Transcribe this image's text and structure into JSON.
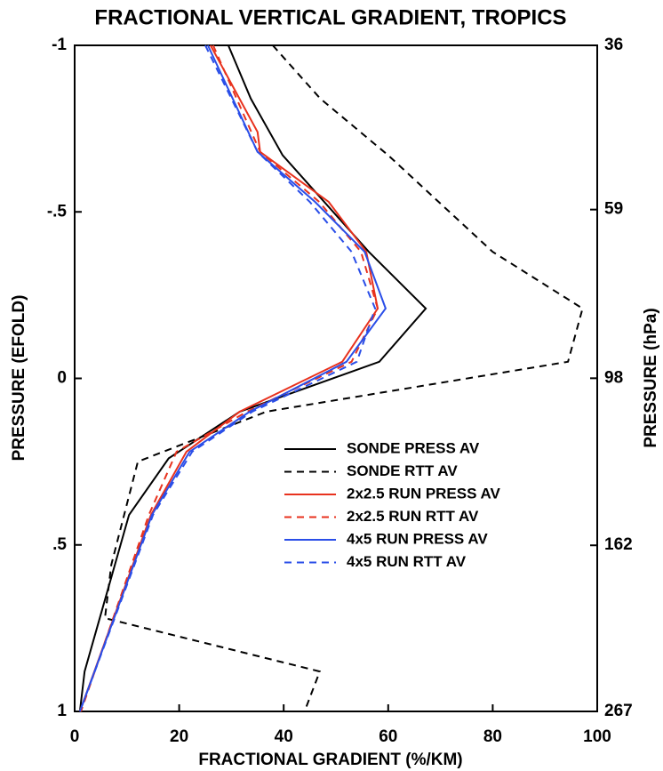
{
  "chart_data": {
    "type": "line",
    "title": "FRACTIONAL VERTICAL GRADIENT, TROPICS",
    "x_label": "FRACTIONAL GRADIENT (%/KM)",
    "y_label": "PRESSURE (EFOLD)",
    "y2_label": "PRESSURE (hPa)",
    "xlim": [
      0,
      100
    ],
    "xticks": [
      0,
      20,
      40,
      60,
      80,
      100
    ],
    "ylim": [
      1,
      -1
    ],
    "yticks": [
      -1,
      {
        "value": -0.5,
        "label": "-.5"
      },
      0,
      {
        "value": 0.5,
        "label": ".5"
      },
      1
    ],
    "y2lim": [
      267,
      36
    ],
    "y2_log": true,
    "y2ticks": [
      36,
      59,
      98,
      162,
      267
    ],
    "series": [
      {
        "name": "SONDE PRESS AV",
        "color": "#000000",
        "dashed": false,
        "x": [
          29.4,
          33.7,
          39.8,
          56.3,
          67.2,
          58.3,
          31.6,
          18.0,
          10.4,
          1.9,
          1.0
        ],
        "values": [
          -1,
          -0.84,
          -0.67,
          -0.38,
          -0.21,
          -0.05,
          0.1,
          0.24,
          0.41,
          0.88,
          1
        ]
      },
      {
        "name": "SONDE RTT AV",
        "color": "#000000",
        "dashed": true,
        "x": [
          37.9,
          47,
          60,
          80,
          97.2,
          94.4,
          36.7,
          12.1,
          7.0,
          5.8,
          46.9,
          44
        ],
        "values": [
          -1,
          -0.84,
          -0.67,
          -0.38,
          -0.21,
          -0.05,
          0.1,
          0.25,
          0.56,
          0.72,
          0.88,
          1
        ]
      },
      {
        "name": "2x2.5 RUN PRESS AV",
        "color": "#e8321e",
        "dashed": false,
        "x": [
          26,
          35,
          35.5,
          48.6,
          55.8,
          58,
          51.2,
          31.6,
          21.4,
          14.6,
          1
        ],
        "values": [
          -1,
          -0.74,
          -0.68,
          -0.53,
          -0.38,
          -0.21,
          -0.05,
          0.1,
          0.22,
          0.41,
          1
        ]
      },
      {
        "name": "2x2.5 RUN RTT AV",
        "color": "#e8321e",
        "dashed": true,
        "x": [
          26.5,
          35.5,
          46.8,
          54.8,
          58,
          53,
          33,
          19.5,
          14.2,
          1.2
        ],
        "values": [
          -1,
          -0.68,
          -0.53,
          -0.38,
          -0.21,
          -0.05,
          0.1,
          0.22,
          0.41,
          1
        ]
      },
      {
        "name": "4x5 RUN PRESS AV",
        "color": "#2a4ee8",
        "dashed": false,
        "x": [
          25.5,
          35,
          46,
          55.5,
          59.5,
          52,
          33.5,
          22,
          14.8,
          1
        ],
        "values": [
          -1,
          -0.68,
          -0.53,
          -0.38,
          -0.21,
          -0.05,
          0.1,
          0.22,
          0.41,
          1
        ]
      },
      {
        "name": "4x5 RUN RTT AV",
        "color": "#2a4ee8",
        "dashed": true,
        "x": [
          25,
          35,
          45,
          53,
          57.5,
          54,
          34,
          22.5,
          15,
          1
        ],
        "values": [
          -1,
          -0.68,
          -0.53,
          -0.38,
          -0.21,
          -0.05,
          0.1,
          0.22,
          0.41,
          1
        ]
      }
    ]
  }
}
